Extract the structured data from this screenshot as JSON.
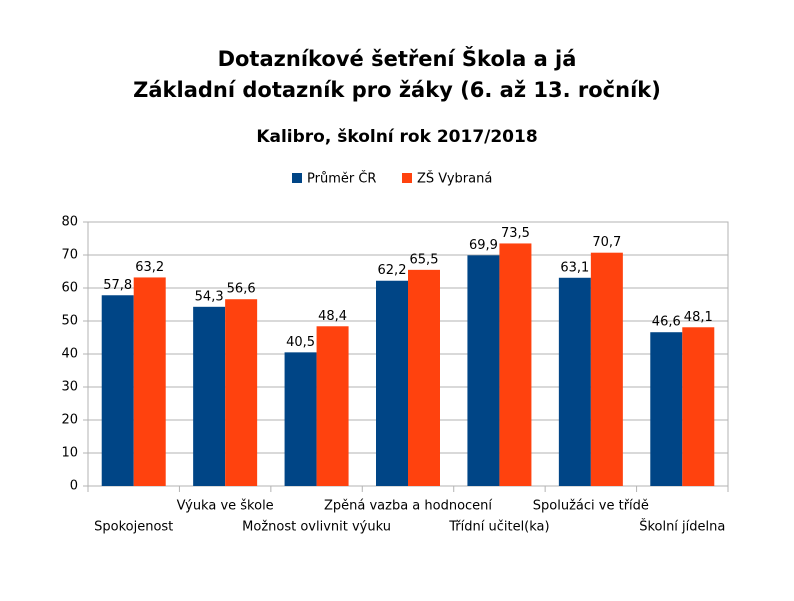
{
  "chart_data": {
    "type": "bar",
    "title": [
      "Dotazníkové šetření Škola a já",
      "Základní dotazník pro žáky (6. až 13. ročník)"
    ],
    "subtitle": "Kalibro, školní rok 2017/2018",
    "categories": [
      "Spokojenost",
      "Výuka ve škole",
      "Možnost ovlivnit výuku",
      "Zpěná vazba a hodnocení",
      "Třídní učitel(ka)",
      "Spolužáci ve třídě",
      "Školní jídelna"
    ],
    "series": [
      {
        "name": "Průměr ČR",
        "color": "#004586",
        "values": [
          57.8,
          54.3,
          40.5,
          62.2,
          69.9,
          63.1,
          46.6
        ],
        "value_labels": [
          "57,8",
          "54,3",
          "40,5",
          "62,2",
          "69,9",
          "63,1",
          "46,6"
        ]
      },
      {
        "name": "ZŠ Vybraná",
        "color": "#ff420e",
        "values": [
          63.2,
          56.6,
          48.4,
          65.5,
          73.5,
          70.7,
          48.1
        ],
        "value_labels": [
          "63,2",
          "56,6",
          "48,4",
          "65,5",
          "73,5",
          "70,7",
          "48,1"
        ]
      }
    ],
    "ylim": [
      0,
      80
    ],
    "yticks": [
      0,
      10,
      20,
      30,
      40,
      50,
      60,
      70,
      80
    ],
    "grid": true,
    "legend": "top"
  }
}
